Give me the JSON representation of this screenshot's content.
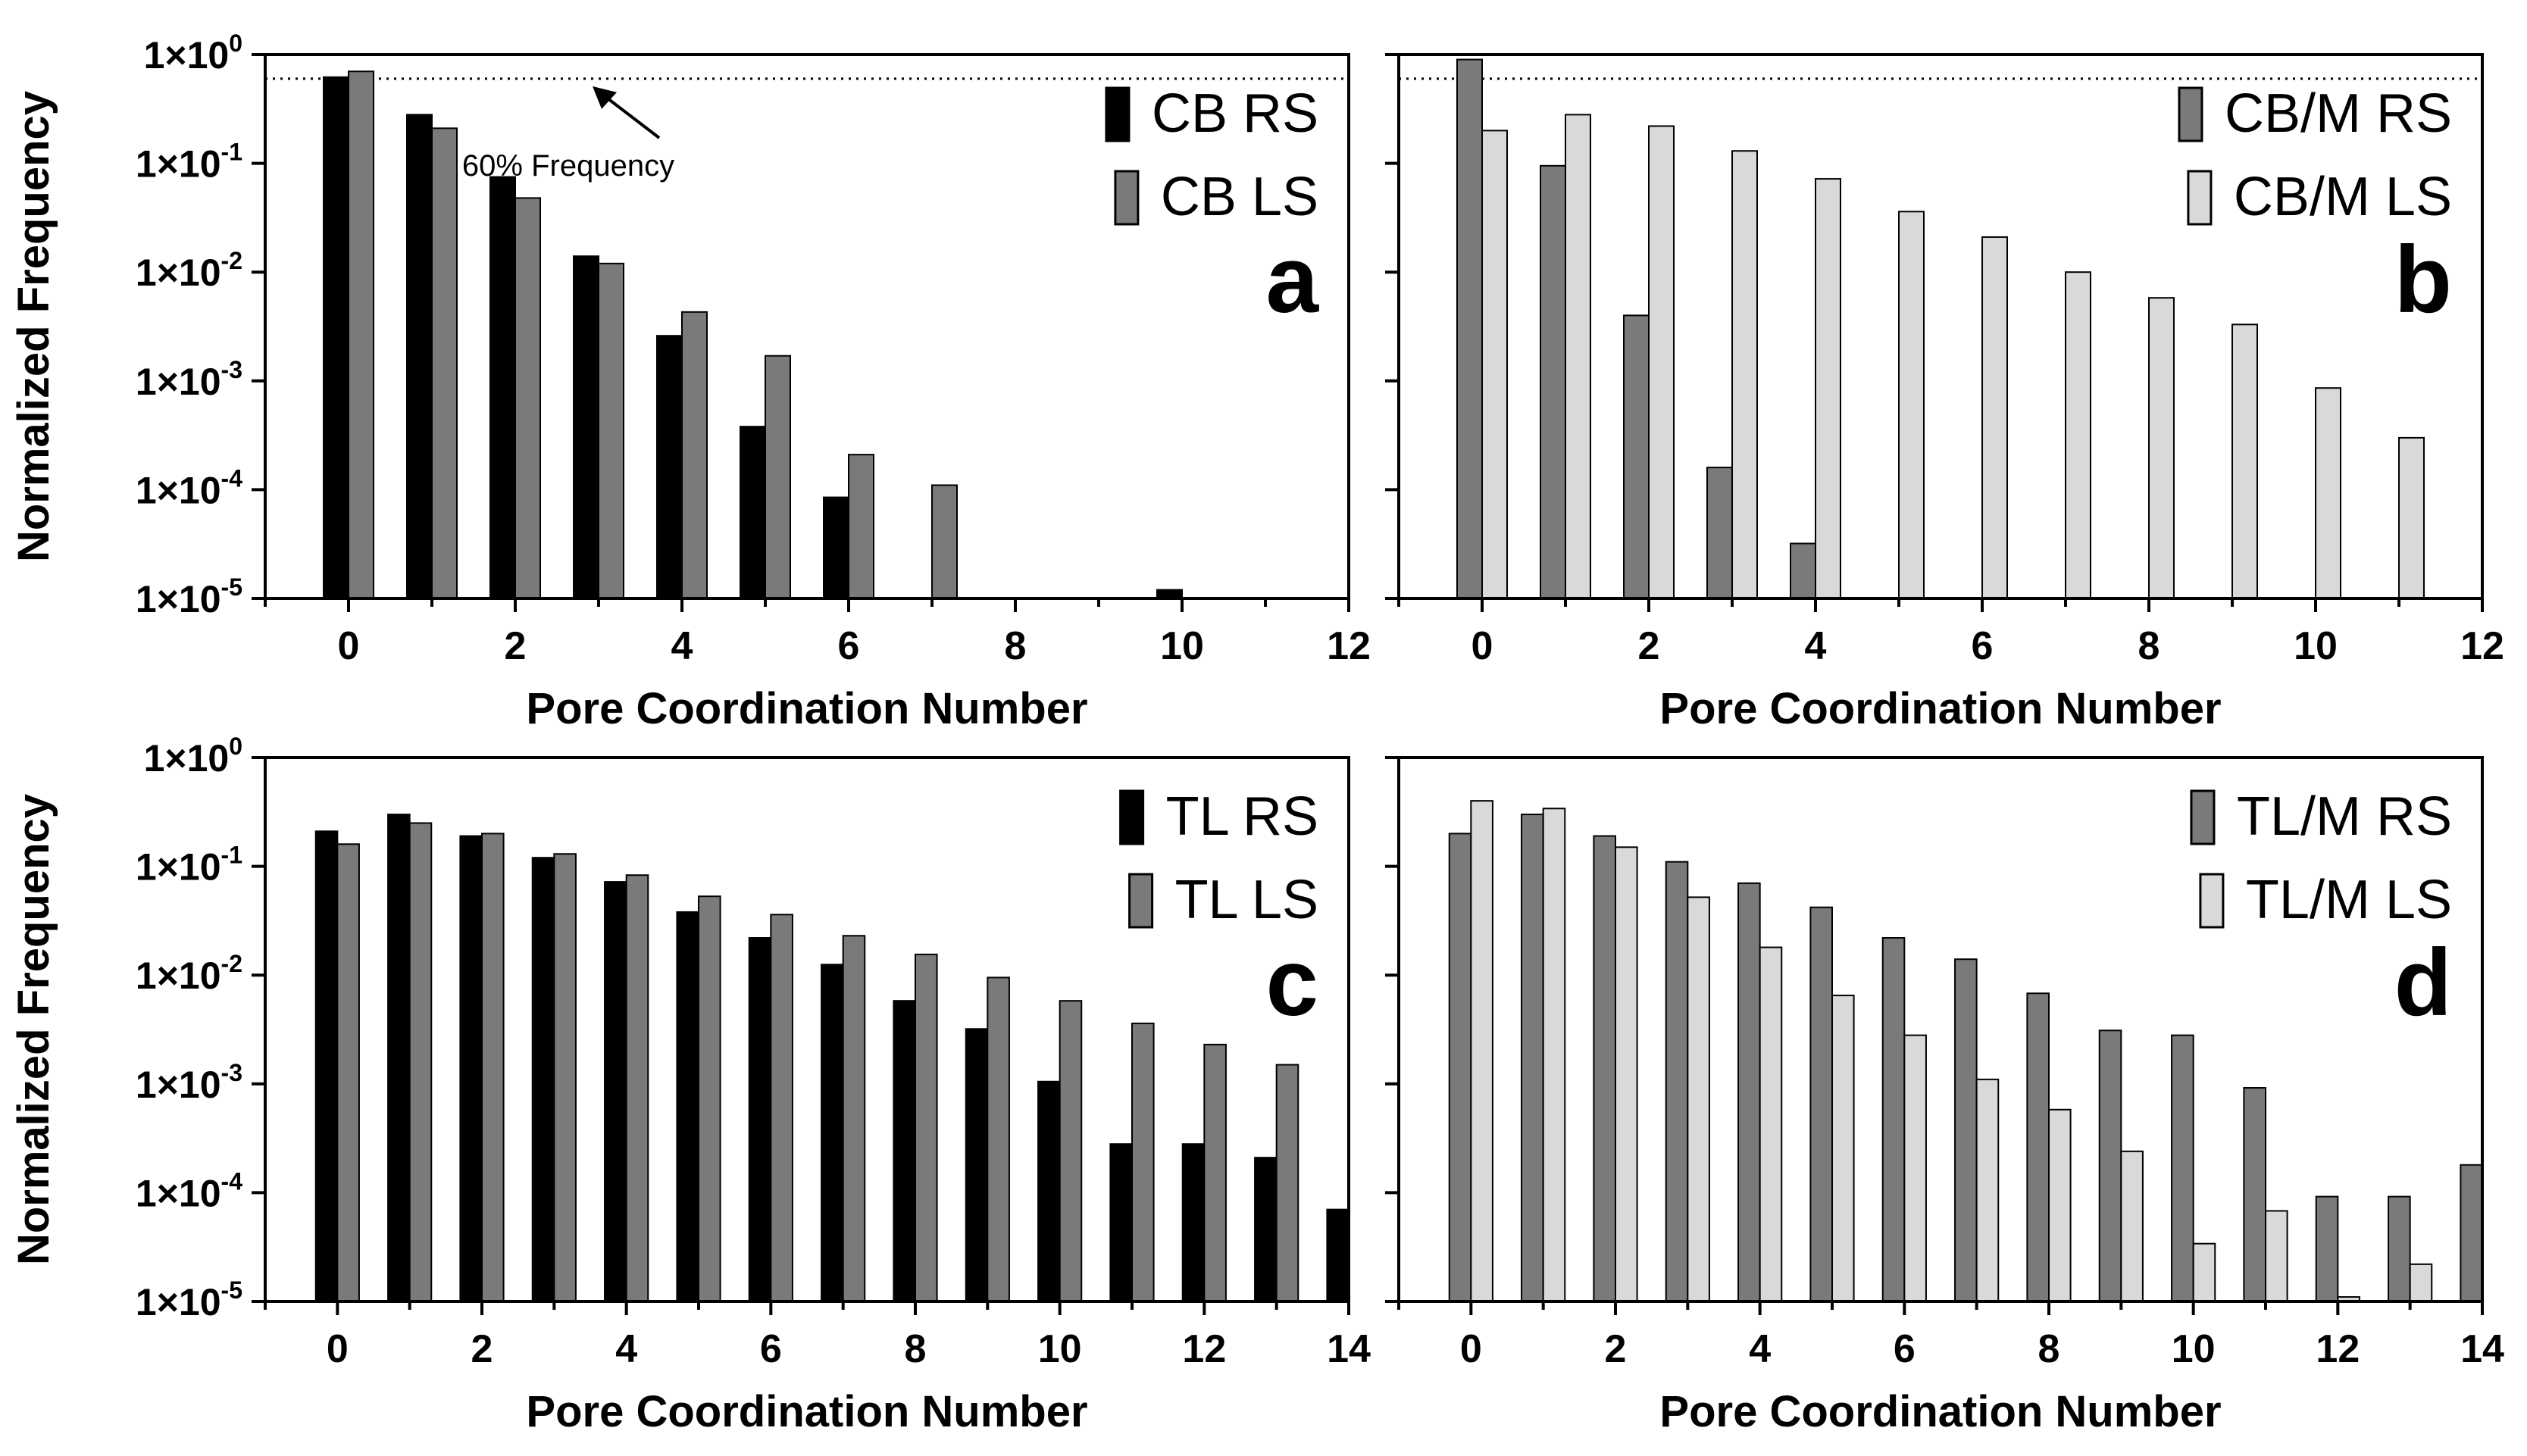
{
  "chart_data": [
    {
      "type": "bar",
      "panel_letter": "a",
      "xlabel": "Pore Coordination Number",
      "ylabel": "Normalized Frequency",
      "yscale": "log",
      "ylim": [
        1e-05,
        1
      ],
      "xlim": [
        -1,
        12
      ],
      "x_ticks": [
        0,
        2,
        4,
        6,
        8,
        10,
        12
      ],
      "x_tick_labels": [
        "0",
        "2",
        "4",
        "6",
        "8",
        "10",
        "12"
      ],
      "y_tick_labels": [
        {
          "mantissa": "1×10",
          "exp": "0"
        },
        {
          "mantissa": "1×10",
          "exp": "-1"
        },
        {
          "mantissa": "1×10",
          "exp": "-2"
        },
        {
          "mantissa": "1×10",
          "exp": "-3"
        },
        {
          "mantissa": "1×10",
          "exp": "-4"
        },
        {
          "mantissa": "1×10",
          "exp": "-5"
        }
      ],
      "show_y_tick_labels": true,
      "show_x_axis_title": true,
      "show_y_axis_title": true,
      "legend_location": "top-right",
      "reference_line": {
        "value": 0.6,
        "style": "dotted"
      },
      "annotation": {
        "text": "60% Frequency"
      },
      "series": [
        {
          "name": "CB RS",
          "color": "#000000",
          "values": [
            0.62,
            0.28,
            0.075,
            0.014,
            0.0026,
            0.00038,
            8.5e-05,
            null,
            null,
            null,
            1.2e-05,
            null
          ]
        },
        {
          "name": "CB LS",
          "color": "#7a7a7a",
          "values": [
            0.7,
            0.21,
            0.048,
            0.012,
            0.0043,
            0.0017,
            0.00021,
            0.00011,
            null,
            null,
            null,
            null
          ]
        }
      ]
    },
    {
      "type": "bar",
      "panel_letter": "b",
      "xlabel": "Pore Coordination Number",
      "ylabel": "",
      "yscale": "log",
      "ylim": [
        1e-05,
        1
      ],
      "xlim": [
        -1,
        12
      ],
      "x_ticks": [
        0,
        2,
        4,
        6,
        8,
        10,
        12
      ],
      "x_tick_labels": [
        "0",
        "2",
        "4",
        "6",
        "8",
        "10",
        "12"
      ],
      "y_tick_labels": [],
      "show_y_tick_labels": false,
      "show_x_axis_title": true,
      "show_y_axis_title": false,
      "legend_location": "top-right",
      "reference_line": {
        "value": 0.6,
        "style": "dotted"
      },
      "series": [
        {
          "name": "CB/M RS",
          "color": "#7a7a7a",
          "values": [
            0.9,
            0.095,
            0.004,
            0.00016,
            3.2e-05,
            null,
            null,
            null,
            null,
            null,
            null,
            null
          ]
        },
        {
          "name": "CB/M LS",
          "color": "#d9d9d9",
          "values": [
            0.2,
            0.28,
            0.22,
            0.13,
            0.072,
            0.036,
            0.021,
            0.01,
            0.0058,
            0.0033,
            0.00086,
            0.0003
          ]
        }
      ]
    },
    {
      "type": "bar",
      "panel_letter": "c",
      "xlabel": "Pore Coordination Number",
      "ylabel": "Normalized Frequency",
      "yscale": "log",
      "ylim": [
        1e-05,
        1
      ],
      "xlim": [
        -1,
        14
      ],
      "x_ticks": [
        0,
        2,
        4,
        6,
        8,
        10,
        12,
        14
      ],
      "x_tick_labels": [
        "0",
        "2",
        "4",
        "6",
        "8",
        "10",
        "12",
        "14"
      ],
      "y_tick_labels": [
        {
          "mantissa": "1×10",
          "exp": "0"
        },
        {
          "mantissa": "1×10",
          "exp": "-1"
        },
        {
          "mantissa": "1×10",
          "exp": "-2"
        },
        {
          "mantissa": "1×10",
          "exp": "-3"
        },
        {
          "mantissa": "1×10",
          "exp": "-4"
        },
        {
          "mantissa": "1×10",
          "exp": "-5"
        }
      ],
      "show_y_tick_labels": true,
      "show_x_axis_title": true,
      "show_y_axis_title": true,
      "legend_location": "top-right",
      "series": [
        {
          "name": "TL RS",
          "color": "#000000",
          "values": [
            0.21,
            0.3,
            0.19,
            0.12,
            0.072,
            0.038,
            0.022,
            0.0125,
            0.0058,
            0.0032,
            0.00105,
            0.00028,
            0.00028,
            0.00021,
            7e-05
          ]
        },
        {
          "name": "TL LS",
          "color": "#7a7a7a",
          "values": [
            0.16,
            0.25,
            0.2,
            0.13,
            0.083,
            0.053,
            0.036,
            0.023,
            0.0155,
            0.0095,
            0.0058,
            0.0036,
            0.0023,
            0.0015,
            null
          ]
        }
      ]
    },
    {
      "type": "bar",
      "panel_letter": "d",
      "xlabel": "Pore Coordination Number",
      "ylabel": "",
      "yscale": "log",
      "ylim": [
        1e-05,
        1
      ],
      "xlim": [
        -1,
        14
      ],
      "x_ticks": [
        0,
        2,
        4,
        6,
        8,
        10,
        12,
        14
      ],
      "x_tick_labels": [
        "0",
        "2",
        "4",
        "6",
        "8",
        "10",
        "12",
        "14"
      ],
      "y_tick_labels": [],
      "show_y_tick_labels": false,
      "show_x_axis_title": true,
      "show_y_axis_title": false,
      "legend_location": "top-right",
      "series": [
        {
          "name": "TL/M RS",
          "color": "#7a7a7a",
          "values": [
            0.2,
            0.3,
            0.19,
            0.11,
            0.07,
            0.042,
            0.022,
            0.014,
            0.0068,
            0.0031,
            0.0028,
            0.00092,
            9.2e-05,
            9.2e-05,
            0.00018
          ]
        },
        {
          "name": "TL/M LS",
          "color": "#d9d9d9",
          "values": [
            0.4,
            0.34,
            0.15,
            0.052,
            0.018,
            0.0065,
            0.0028,
            0.0011,
            0.00058,
            0.00024,
            3.4e-05,
            6.8e-05,
            1.1e-05,
            2.2e-05,
            null
          ]
        }
      ]
    }
  ]
}
